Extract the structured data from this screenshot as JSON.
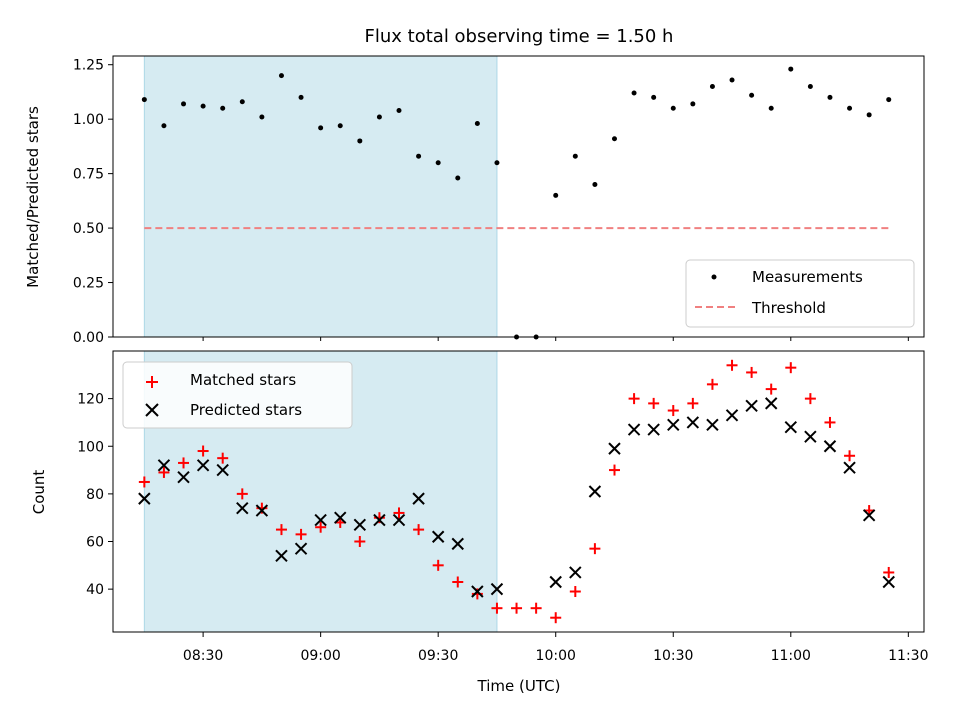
{
  "chart_data": [
    {
      "type": "scatter",
      "title": "Flux total observing time = 1.50 h",
      "ylabel": "Matched/Predicted stars",
      "ylim": [
        0,
        1.29
      ],
      "yticks": [
        "0.00",
        "0.25",
        "0.50",
        "0.75",
        "1.00",
        "1.25"
      ],
      "ytick_values": [
        0,
        0.25,
        0.5,
        0.75,
        1.0,
        1.25
      ],
      "x_time_range": [
        "08:07",
        "11:34"
      ],
      "shaded_span": [
        "08:15",
        "09:45"
      ],
      "legend_position": "lower right",
      "series": [
        {
          "name": "Measurements",
          "marker": "dot",
          "color": "#000000",
          "x": [
            "08:15",
            "08:20",
            "08:25",
            "08:30",
            "08:35",
            "08:40",
            "08:45",
            "08:50",
            "08:55",
            "09:00",
            "09:05",
            "09:10",
            "09:15",
            "09:20",
            "09:25",
            "09:30",
            "09:35",
            "09:40",
            "09:45",
            "09:50",
            "09:55",
            "10:00",
            "10:05",
            "10:10",
            "10:15",
            "10:20",
            "10:25",
            "10:30",
            "10:35",
            "10:40",
            "10:45",
            "10:50",
            "10:55",
            "11:00",
            "11:05",
            "11:10",
            "11:15",
            "11:20",
            "11:25"
          ],
          "y": [
            1.09,
            0.97,
            1.07,
            1.06,
            1.05,
            1.08,
            1.01,
            1.2,
            1.1,
            0.96,
            0.97,
            0.9,
            1.01,
            1.04,
            0.83,
            0.8,
            0.73,
            0.98,
            0.8,
            0.0,
            0.0,
            0.65,
            0.83,
            0.7,
            0.91,
            1.12,
            1.1,
            1.05,
            1.07,
            1.15,
            1.18,
            1.11,
            1.05,
            1.23,
            1.15,
            1.1,
            1.05,
            1.02,
            1.09
          ]
        },
        {
          "name": "Threshold",
          "marker": "dashed-line",
          "color": "#f08080",
          "x": [
            "08:15",
            "11:25"
          ],
          "y": [
            0.5,
            0.5
          ]
        }
      ]
    },
    {
      "type": "scatter",
      "xlabel": "Time (UTC)",
      "ylabel": "Count",
      "ylim": [
        22,
        140
      ],
      "yticks": [
        "40",
        "60",
        "80",
        "100",
        "120"
      ],
      "ytick_values": [
        40,
        60,
        80,
        100,
        120
      ],
      "xticks": [
        "08:30",
        "09:00",
        "09:30",
        "10:00",
        "10:30",
        "11:00",
        "11:30"
      ],
      "xtick_values": [
        "08:30",
        "09:00",
        "09:30",
        "10:00",
        "10:30",
        "11:00",
        "11:30"
      ],
      "x_time_range": [
        "08:07",
        "11:34"
      ],
      "shaded_span": [
        "08:15",
        "09:45"
      ],
      "legend_position": "upper left",
      "series": [
        {
          "name": "Matched stars",
          "marker": "plus",
          "color": "#ff0000",
          "x": [
            "08:15",
            "08:20",
            "08:25",
            "08:30",
            "08:35",
            "08:40",
            "08:45",
            "08:50",
            "08:55",
            "09:00",
            "09:05",
            "09:10",
            "09:15",
            "09:20",
            "09:25",
            "09:30",
            "09:35",
            "09:40",
            "09:45",
            "09:50",
            "09:55",
            "10:00",
            "10:05",
            "10:10",
            "10:15",
            "10:20",
            "10:25",
            "10:30",
            "10:35",
            "10:40",
            "10:45",
            "10:50",
            "10:55",
            "11:00",
            "11:05",
            "11:10",
            "11:15",
            "11:20",
            "11:25"
          ],
          "y": [
            85,
            89,
            93,
            98,
            95,
            80,
            74,
            65,
            63,
            66,
            68,
            60,
            70,
            72,
            65,
            50,
            43,
            38,
            32,
            32,
            32,
            28,
            39,
            57,
            90,
            120,
            118,
            115,
            118,
            126,
            134,
            131,
            124,
            133,
            120,
            110,
            96,
            73,
            47
          ]
        },
        {
          "name": "Predicted stars",
          "marker": "x",
          "color": "#000000",
          "x": [
            "08:15",
            "08:20",
            "08:25",
            "08:30",
            "08:35",
            "08:40",
            "08:45",
            "08:50",
            "08:55",
            "09:00",
            "09:05",
            "09:10",
            "09:15",
            "09:20",
            "09:25",
            "09:30",
            "09:35",
            "09:40",
            "09:45",
            "10:00",
            "10:05",
            "10:10",
            "10:15",
            "10:20",
            "10:25",
            "10:30",
            "10:35",
            "10:40",
            "10:45",
            "10:50",
            "10:55",
            "11:00",
            "11:05",
            "11:10",
            "11:15",
            "11:20",
            "11:25"
          ],
          "y": [
            78,
            92,
            87,
            92,
            90,
            74,
            73,
            54,
            57,
            69,
            70,
            67,
            69,
            69,
            78,
            62,
            59,
            39,
            40,
            43,
            47,
            81,
            99,
            107,
            107,
            109,
            110,
            109,
            113,
            117,
            118,
            108,
            104,
            100,
            91,
            71,
            43
          ]
        }
      ]
    }
  ],
  "colors": {
    "shade": "#add8e6",
    "measurements": "#000000",
    "threshold": "#f08080",
    "matched": "#ff0000",
    "predicted": "#000000"
  }
}
